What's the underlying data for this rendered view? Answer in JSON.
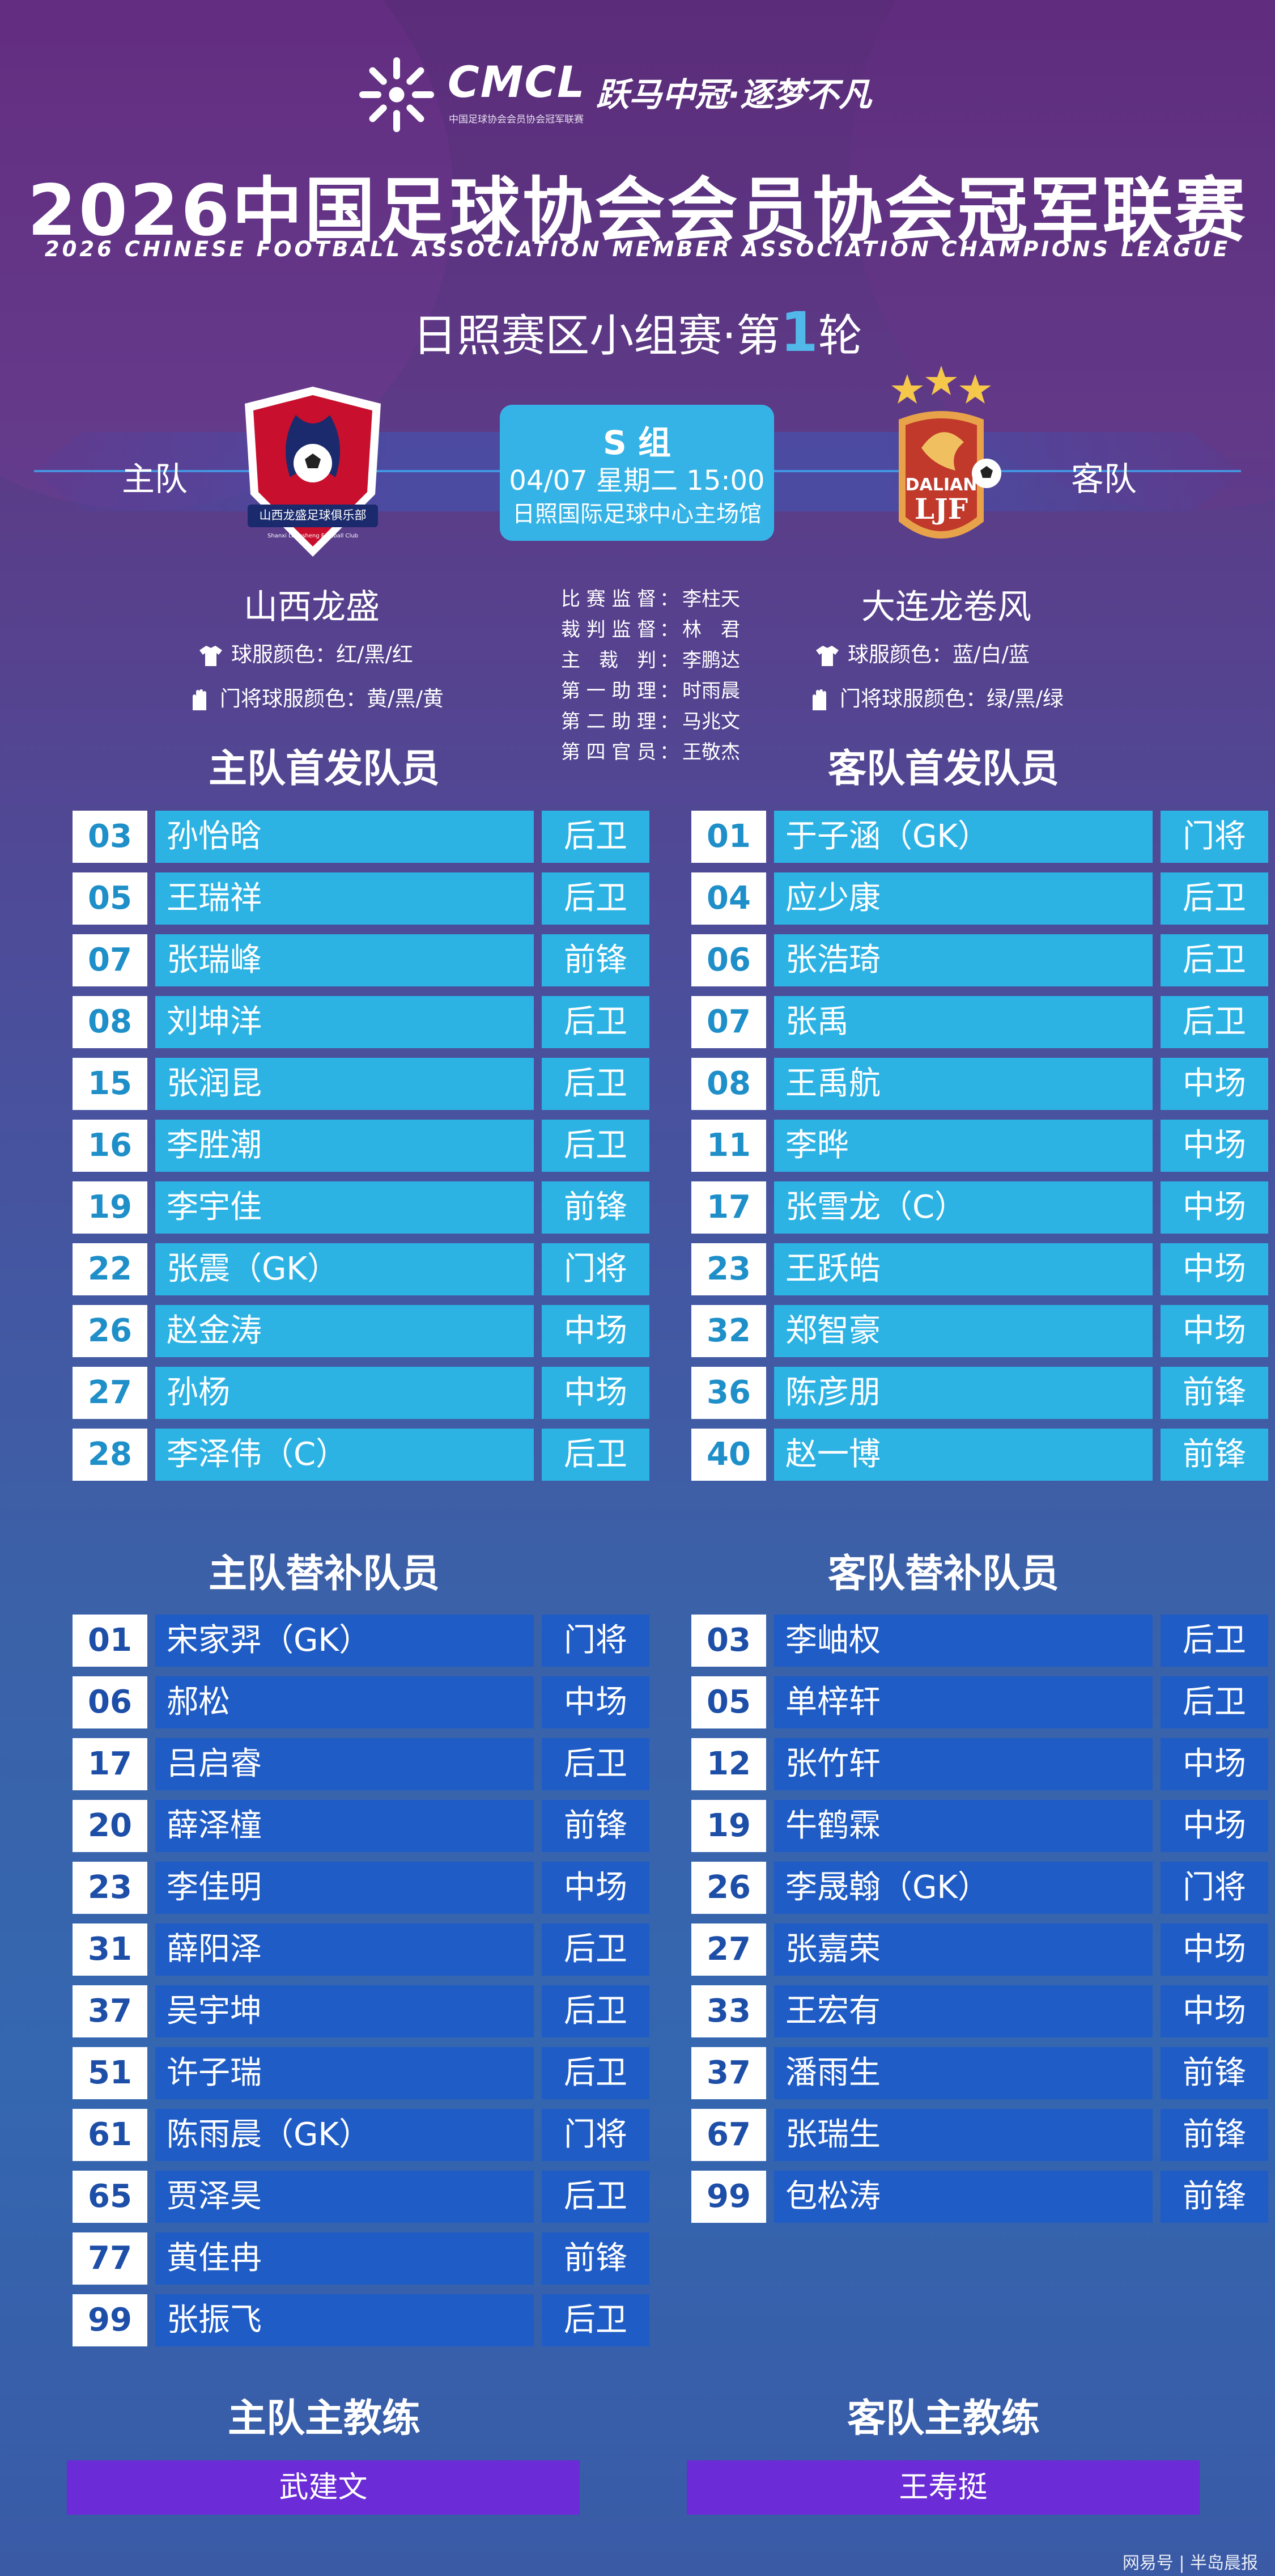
{
  "brand": {
    "logo_text": "CMCL",
    "sub_text": "中国足球协会会员协会冠军联赛",
    "slogan": "跃马中冠·逐梦不凡"
  },
  "title": "2026中国足球协会会员协会冠军联赛",
  "title_en": "2026 CHINESE FOOTBALL ASSOCIATION MEMBER ASSOCIATION CHAMPIONS LEAGUE",
  "round": {
    "prefix": "日照赛区小组赛·第",
    "number": "1",
    "suffix": "轮"
  },
  "match": {
    "home_label": "主队",
    "away_label": "客队",
    "group": "S 组",
    "datetime": "04/07 星期二 15:00",
    "venue": "日照国际足球中心主场馆"
  },
  "home": {
    "name": "山西龙盛",
    "crest_text": "山西龙盛足球俱乐部",
    "crest_sub": "Shanxi Longsheng Football Club",
    "kit": "球服颜色：红/黑/红",
    "gk_kit": "门将球服颜色：黄/黑/黄"
  },
  "away": {
    "name": "大连龙卷风",
    "crest_top": "DALIAN",
    "crest_bottom": "LJF",
    "kit": "球服颜色：蓝/白/蓝",
    "gk_kit": "门将球服颜色：绿/黑/绿"
  },
  "officials": [
    {
      "role": "比赛监督",
      "name": "李柱天"
    },
    {
      "role": "裁判监督",
      "name": "林　君"
    },
    {
      "role": "主裁判",
      "name": "李鹏达"
    },
    {
      "role": "第一助理",
      "name": "时雨晨"
    },
    {
      "role": "第二助理",
      "name": "马兆文"
    },
    {
      "role": "第四官员",
      "name": "王敬杰"
    }
  ],
  "sections": {
    "home_starters": "主队首发队员",
    "away_starters": "客队首发队员",
    "home_subs": "主队替补队员",
    "away_subs": "客队替补队员",
    "home_coach": "主队主教练",
    "away_coach": "客队主教练"
  },
  "home_starters": [
    {
      "num": "03",
      "name": "孙怡晗",
      "pos": "后卫"
    },
    {
      "num": "05",
      "name": "王瑞祥",
      "pos": "后卫"
    },
    {
      "num": "07",
      "name": "张瑞峰",
      "pos": "前锋"
    },
    {
      "num": "08",
      "name": "刘坤洋",
      "pos": "后卫"
    },
    {
      "num": "15",
      "name": "张润昆",
      "pos": "后卫"
    },
    {
      "num": "16",
      "name": "李胜潮",
      "pos": "后卫"
    },
    {
      "num": "19",
      "name": "李宇佳",
      "pos": "前锋"
    },
    {
      "num": "22",
      "name": "张震（GK）",
      "pos": "门将"
    },
    {
      "num": "26",
      "name": "赵金涛",
      "pos": "中场"
    },
    {
      "num": "27",
      "name": "孙杨",
      "pos": "中场"
    },
    {
      "num": "28",
      "name": "李泽伟（C）",
      "pos": "后卫"
    }
  ],
  "away_starters": [
    {
      "num": "01",
      "name": "于子涵（GK）",
      "pos": "门将"
    },
    {
      "num": "04",
      "name": "应少康",
      "pos": "后卫"
    },
    {
      "num": "06",
      "name": "张浩琦",
      "pos": "后卫"
    },
    {
      "num": "07",
      "name": "张禹",
      "pos": "后卫"
    },
    {
      "num": "08",
      "name": "王禹航",
      "pos": "中场"
    },
    {
      "num": "11",
      "name": "李晔",
      "pos": "中场"
    },
    {
      "num": "17",
      "name": "张雪龙（C）",
      "pos": "中场"
    },
    {
      "num": "23",
      "name": "王跃皓",
      "pos": "中场"
    },
    {
      "num": "32",
      "name": "郑智豪",
      "pos": "中场"
    },
    {
      "num": "36",
      "name": "陈彦朋",
      "pos": "前锋"
    },
    {
      "num": "40",
      "name": "赵一博",
      "pos": "前锋"
    }
  ],
  "home_subs": [
    {
      "num": "01",
      "name": "宋家羿（GK）",
      "pos": "门将"
    },
    {
      "num": "06",
      "name": "郝松",
      "pos": "中场"
    },
    {
      "num": "17",
      "name": "吕启睿",
      "pos": "后卫"
    },
    {
      "num": "20",
      "name": "薛泽橦",
      "pos": "前锋"
    },
    {
      "num": "23",
      "name": "李佳明",
      "pos": "中场"
    },
    {
      "num": "31",
      "name": "薛阳泽",
      "pos": "后卫"
    },
    {
      "num": "37",
      "name": "吴宇坤",
      "pos": "后卫"
    },
    {
      "num": "51",
      "name": "许子瑞",
      "pos": "后卫"
    },
    {
      "num": "61",
      "name": "陈雨晨（GK）",
      "pos": "门将"
    },
    {
      "num": "65",
      "name": "贾泽昊",
      "pos": "后卫"
    },
    {
      "num": "77",
      "name": "黄佳冉",
      "pos": "前锋"
    },
    {
      "num": "99",
      "name": "张振飞",
      "pos": "后卫"
    }
  ],
  "away_subs": [
    {
      "num": "03",
      "name": "李岫权",
      "pos": "后卫"
    },
    {
      "num": "05",
      "name": "单梓轩",
      "pos": "后卫"
    },
    {
      "num": "12",
      "name": "张竹轩",
      "pos": "中场"
    },
    {
      "num": "19",
      "name": "牛鹤霖",
      "pos": "中场"
    },
    {
      "num": "26",
      "name": "李晟翰（GK）",
      "pos": "门将"
    },
    {
      "num": "27",
      "name": "张嘉荣",
      "pos": "中场"
    },
    {
      "num": "33",
      "name": "王宏有",
      "pos": "中场"
    },
    {
      "num": "37",
      "name": "潘雨生",
      "pos": "前锋"
    },
    {
      "num": "67",
      "name": "张瑞生",
      "pos": "前锋"
    },
    {
      "num": "99",
      "name": "包松涛",
      "pos": "前锋"
    }
  ],
  "coaches": {
    "home": "武建文",
    "away": "王寿挺"
  },
  "credit": "网易号 | 半岛晨报",
  "colors": {
    "starter_bar": "#2cb3e4",
    "sub_bar": "#1f5cc6",
    "coach_bar": "#6b2bd6",
    "accent": "#52b8ea"
  },
  "icons": [
    "cmcl-logo-icon",
    "home-crest-icon",
    "away-crest-icon",
    "shirt-icon",
    "glove-icon",
    "star-icon"
  ]
}
